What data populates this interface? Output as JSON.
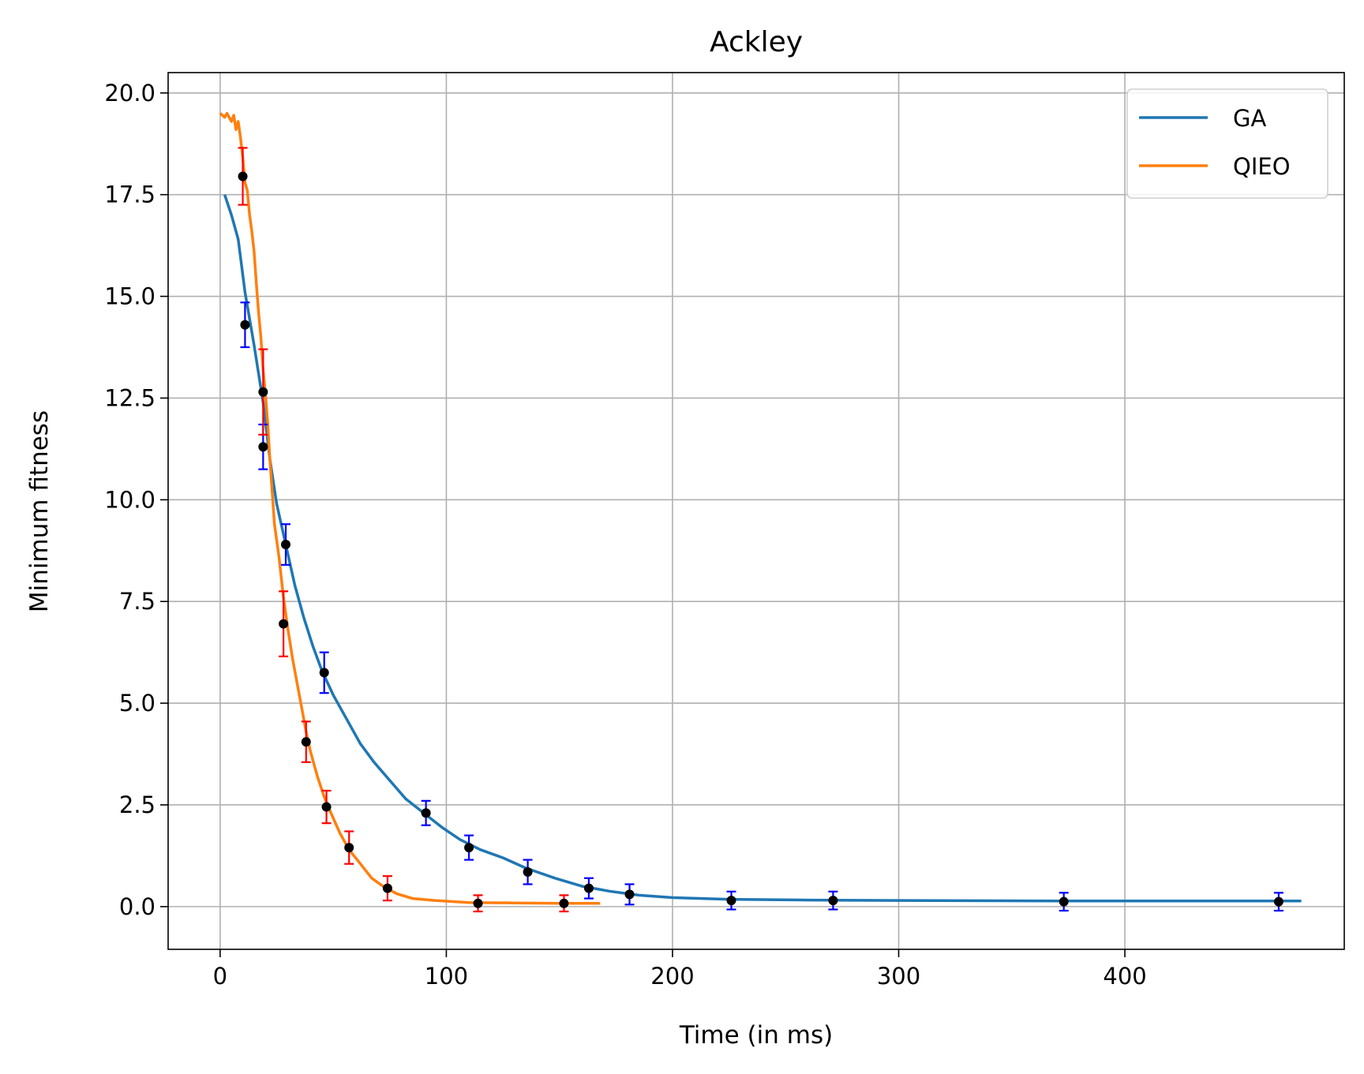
{
  "chart_data": {
    "type": "line",
    "title": "Ackley",
    "xlabel": "Time (in ms)",
    "ylabel": "Minimum fitness",
    "xlim": [
      -23,
      497
    ],
    "ylim": [
      -1.05,
      20.5
    ],
    "xticks": [
      0,
      100,
      200,
      300,
      400
    ],
    "xtick_labels": [
      "0",
      "100",
      "200",
      "300",
      "400"
    ],
    "yticks": [
      0.0,
      2.5,
      5.0,
      7.5,
      10.0,
      12.5,
      15.0,
      17.5,
      20.0
    ],
    "ytick_labels": [
      "0.0",
      "2.5",
      "5.0",
      "7.5",
      "10.0",
      "12.5",
      "15.0",
      "17.5",
      "20.0"
    ],
    "grid": true,
    "legend": "top-right",
    "series": [
      {
        "name": "GA",
        "color": "#1f77b4",
        "line": [
          [
            2,
            17.5
          ],
          [
            5,
            17.0
          ],
          [
            8,
            16.4
          ],
          [
            11,
            15.1
          ],
          [
            15,
            13.8
          ],
          [
            19,
            12.4
          ],
          [
            22,
            11.0
          ],
          [
            25,
            9.9
          ],
          [
            29,
            8.9
          ],
          [
            33,
            7.9
          ],
          [
            37,
            7.1
          ],
          [
            41,
            6.4
          ],
          [
            45,
            5.8
          ],
          [
            50,
            5.2
          ],
          [
            56,
            4.6
          ],
          [
            62,
            4.0
          ],
          [
            68,
            3.55
          ],
          [
            75,
            3.1
          ],
          [
            82,
            2.65
          ],
          [
            90,
            2.3
          ],
          [
            98,
            1.95
          ],
          [
            106,
            1.65
          ],
          [
            115,
            1.4
          ],
          [
            125,
            1.2
          ],
          [
            135,
            0.95
          ],
          [
            148,
            0.7
          ],
          [
            160,
            0.5
          ],
          [
            172,
            0.38
          ],
          [
            185,
            0.28
          ],
          [
            200,
            0.22
          ],
          [
            225,
            0.18
          ],
          [
            260,
            0.16
          ],
          [
            300,
            0.15
          ],
          [
            370,
            0.14
          ],
          [
            420,
            0.14
          ],
          [
            478,
            0.14
          ]
        ],
        "error_color": "#0000ff",
        "points": [
          {
            "x": 11,
            "y": 14.3,
            "err": 0.55
          },
          {
            "x": 19,
            "y": 11.3,
            "err": 0.55
          },
          {
            "x": 29,
            "y": 8.9,
            "err": 0.5
          },
          {
            "x": 46,
            "y": 5.75,
            "err": 0.5
          },
          {
            "x": 91,
            "y": 2.3,
            "err": 0.3
          },
          {
            "x": 110,
            "y": 1.45,
            "err": 0.3
          },
          {
            "x": 136,
            "y": 0.85,
            "err": 0.3
          },
          {
            "x": 163,
            "y": 0.45,
            "err": 0.25
          },
          {
            "x": 181,
            "y": 0.3,
            "err": 0.25
          },
          {
            "x": 226,
            "y": 0.15,
            "err": 0.22
          },
          {
            "x": 271,
            "y": 0.15,
            "err": 0.22
          },
          {
            "x": 373,
            "y": 0.12,
            "err": 0.22
          },
          {
            "x": 468,
            "y": 0.12,
            "err": 0.22
          }
        ]
      },
      {
        "name": "QIEO",
        "color": "#ff7f0e",
        "line": [
          [
            0,
            19.5
          ],
          [
            2,
            19.4
          ],
          [
            3,
            19.5
          ],
          [
            5,
            19.3
          ],
          [
            6,
            19.45
          ],
          [
            7,
            19.1
          ],
          [
            8,
            19.3
          ],
          [
            9,
            18.9
          ],
          [
            10,
            18.4
          ],
          [
            11,
            17.8
          ],
          [
            12,
            17.6
          ],
          [
            13,
            17.0
          ],
          [
            14,
            16.6
          ],
          [
            15,
            16.1
          ],
          [
            16,
            15.3
          ],
          [
            17,
            14.6
          ],
          [
            18,
            14.0
          ],
          [
            19,
            13.2
          ],
          [
            20,
            12.6
          ],
          [
            21,
            11.9
          ],
          [
            22,
            11.0
          ],
          [
            23,
            10.2
          ],
          [
            24,
            9.4
          ],
          [
            26,
            8.6
          ],
          [
            28,
            7.6
          ],
          [
            30,
            6.8
          ],
          [
            32,
            6.1
          ],
          [
            34,
            5.5
          ],
          [
            36,
            4.9
          ],
          [
            38,
            4.3
          ],
          [
            40,
            3.8
          ],
          [
            43,
            3.2
          ],
          [
            46,
            2.7
          ],
          [
            49,
            2.3
          ],
          [
            53,
            1.8
          ],
          [
            57,
            1.4
          ],
          [
            62,
            1.05
          ],
          [
            67,
            0.7
          ],
          [
            72,
            0.5
          ],
          [
            78,
            0.32
          ],
          [
            85,
            0.2
          ],
          [
            95,
            0.15
          ],
          [
            110,
            0.1
          ],
          [
            130,
            0.09
          ],
          [
            150,
            0.08
          ],
          [
            168,
            0.08
          ]
        ],
        "error_color": "#ff0000",
        "points": [
          {
            "x": 10,
            "y": 17.95,
            "err": 0.7
          },
          {
            "x": 19,
            "y": 12.65,
            "err": 1.05
          },
          {
            "x": 28,
            "y": 6.95,
            "err": 0.8
          },
          {
            "x": 38,
            "y": 4.05,
            "err": 0.5
          },
          {
            "x": 47,
            "y": 2.45,
            "err": 0.4
          },
          {
            "x": 57,
            "y": 1.45,
            "err": 0.4
          },
          {
            "x": 74,
            "y": 0.45,
            "err": 0.3
          },
          {
            "x": 114,
            "y": 0.08,
            "err": 0.2
          },
          {
            "x": 152,
            "y": 0.08,
            "err": 0.2
          }
        ]
      }
    ]
  }
}
